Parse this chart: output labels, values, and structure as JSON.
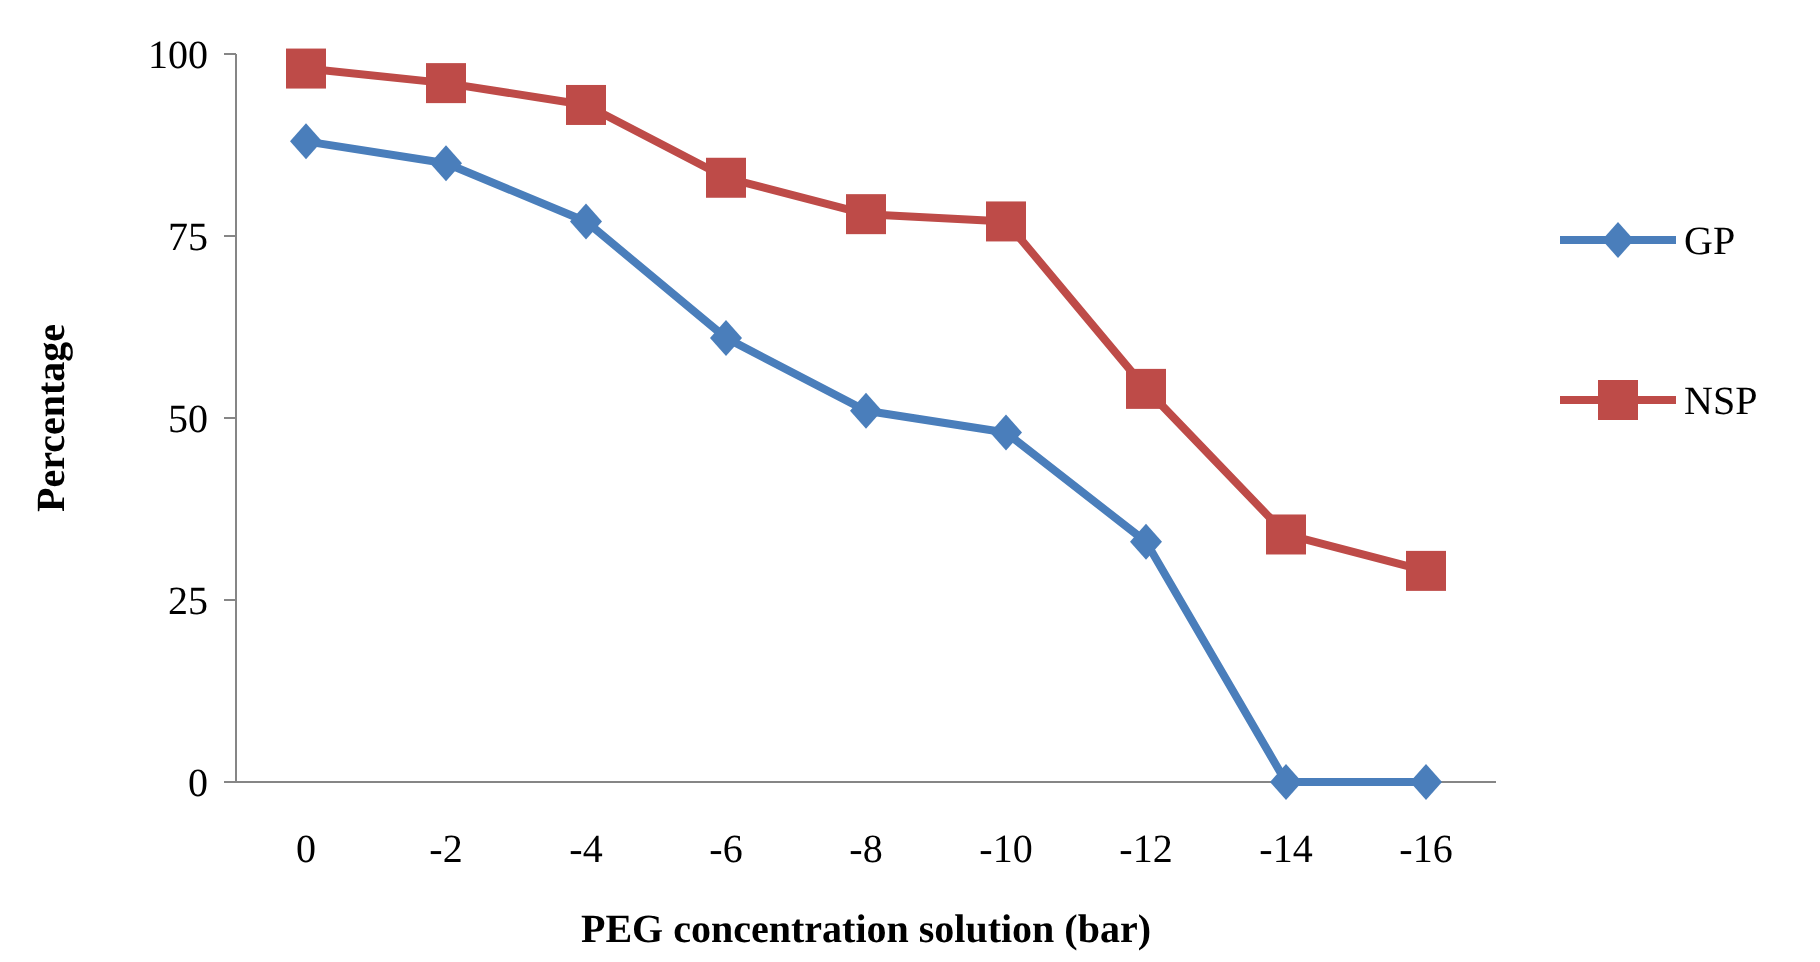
{
  "chart_data": {
    "type": "line",
    "xlabel": "PEG  concentration  solution (bar)",
    "ylabel": "Percentage",
    "categories": [
      "0",
      "-2",
      "-4",
      "-6",
      "-8",
      "-10",
      "-12",
      "-14",
      "-16"
    ],
    "series": [
      {
        "name": "GP",
        "color": "#4a7ebb",
        "marker": "diamond",
        "values": [
          88,
          85,
          77,
          61,
          51,
          48,
          33,
          0,
          0
        ]
      },
      {
        "name": "NSP",
        "color": "#be4b48",
        "marker": "square",
        "values": [
          98,
          96,
          93,
          83,
          78,
          77,
          54,
          34,
          29
        ]
      }
    ],
    "ylim": [
      0,
      100
    ],
    "yticks": [
      0,
      25,
      50,
      75,
      100
    ],
    "grid": false,
    "legend": "right",
    "line_style": "solid"
  }
}
